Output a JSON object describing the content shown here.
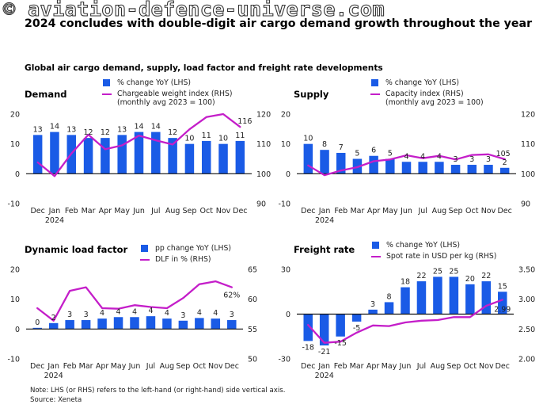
{
  "watermark": "© aviation-defence-universe.com",
  "headline": "2024 concludes with double-digit air cargo demand growth throughout the year",
  "subheadline": "Global air cargo demand, supply, load factor and freight rate developments",
  "footnote": "Note: LHS (or RHS) refers to the left-hand (or right-hand) side vertical axis.",
  "source": "Source: Xeneta",
  "colors": {
    "bar": "#1a5be6",
    "line": "#c41ec9",
    "zero_line": "#111111"
  },
  "chart_data": [
    {
      "id": "demand",
      "type": "bar+line",
      "title": "Demand",
      "categories": [
        "Dec",
        "Jan",
        "Feb",
        "Mar",
        "Apr",
        "May",
        "Jun",
        "Jul",
        "Aug",
        "Sep",
        "Oct",
        "Nov",
        "Dec"
      ],
      "year_label": "2024",
      "year_label_index": 1,
      "lhs": {
        "ylim": [
          -10,
          20
        ],
        "ticks": [
          -10,
          0,
          10,
          20
        ]
      },
      "rhs": {
        "ylim": [
          90,
          120
        ],
        "ticks": [
          90,
          100,
          110,
          120
        ]
      },
      "series": [
        {
          "name": "% change YoY (LHS)",
          "kind": "bar",
          "axis": "lhs",
          "values": [
            13,
            14,
            13,
            12,
            12,
            13,
            14,
            14,
            12,
            10,
            11,
            10,
            11
          ],
          "labels": [
            "13",
            "14",
            "13",
            "12",
            "12",
            "13",
            "14",
            "14",
            "12",
            "10",
            "11",
            "10",
            "11"
          ]
        },
        {
          "name": "Chargeable weight index (RHS)\n(monthly avg 2023 = 100)",
          "kind": "line",
          "axis": "rhs",
          "values": [
            103.8,
            99.2,
            106.8,
            113.1,
            108.2,
            109.5,
            112.8,
            111.2,
            109.8,
            114.9,
            119.0,
            120.0,
            115.7
          ],
          "end_label": "116"
        }
      ]
    },
    {
      "id": "supply",
      "type": "bar+line",
      "title": "Supply",
      "categories": [
        "Dec",
        "Jan",
        "Feb",
        "Mar",
        "Apr",
        "May",
        "Jun",
        "Jul",
        "Aug",
        "Sep",
        "Oct",
        "Nov",
        "Dec"
      ],
      "year_label": "2024",
      "year_label_index": 1,
      "lhs": {
        "ylim": [
          -10,
          20
        ],
        "ticks": [
          -10,
          0,
          10,
          20
        ]
      },
      "rhs": {
        "ylim": [
          90,
          120
        ],
        "ticks": [
          90,
          100,
          110,
          120
        ]
      },
      "series": [
        {
          "name": "% change YoY (LHS)",
          "kind": "bar",
          "axis": "lhs",
          "values": [
            10,
            8,
            7,
            5,
            6,
            5,
            4,
            4,
            4,
            3,
            3,
            3,
            2
          ],
          "labels": [
            "10",
            "8",
            "7",
            "5",
            "6",
            "5",
            "4",
            "4",
            "4",
            "3",
            "3",
            "3",
            "2"
          ]
        },
        {
          "name": "Capacity index (RHS)\n(monthly avg 2023 = 100)",
          "kind": "line",
          "axis": "rhs",
          "values": [
            102.8,
            99.5,
            101.1,
            102.2,
            104.2,
            104.8,
            106.2,
            105.2,
            106.0,
            104.8,
            106.3,
            106.5,
            104.9
          ],
          "end_label": "105"
        }
      ]
    },
    {
      "id": "load-factor",
      "type": "bar+line",
      "title": "Dynamic load factor",
      "categories": [
        "Dec",
        "Jan",
        "Feb",
        "Mar",
        "Apr",
        "May",
        "Jun",
        "Jul",
        "Aug",
        "Sep",
        "Oct",
        "Nov",
        "Dec"
      ],
      "year_label": "2024",
      "year_label_index": 1,
      "lhs": {
        "ylim": [
          -10,
          20
        ],
        "ticks": [
          -10,
          0,
          10,
          20
        ]
      },
      "rhs": {
        "ylim": [
          50,
          65
        ],
        "ticks": [
          50,
          55,
          60,
          65
        ]
      },
      "series": [
        {
          "name": "pp change YoY (LHS)",
          "kind": "bar",
          "axis": "lhs",
          "values": [
            0.4,
            2,
            3,
            3,
            3.5,
            4,
            4,
            4.3,
            3.5,
            2.8,
            3.7,
            3.5,
            3
          ],
          "labels": [
            "0",
            "2",
            "3",
            "3",
            "4",
            "4",
            "4",
            "4",
            "4",
            "3",
            "4",
            "4",
            "3"
          ]
        },
        {
          "name": "DLF in % (RHS)",
          "kind": "line",
          "axis": "rhs",
          "values": [
            58.5,
            56.4,
            61.4,
            62.0,
            58.5,
            58.4,
            59.0,
            58.7,
            58.5,
            60.2,
            62.5,
            63.0,
            62.0
          ],
          "end_label": "62%"
        }
      ]
    },
    {
      "id": "freight-rate",
      "type": "bar+line",
      "title": "Freight rate",
      "categories": [
        "Dec",
        "Jan",
        "Feb",
        "Mar",
        "Apr",
        "May",
        "Jun",
        "Jul",
        "Aug",
        "Sep",
        "Oct",
        "Nov",
        "Dec"
      ],
      "year_label": "2024",
      "year_label_index": 1,
      "lhs": {
        "ylim": [
          -30,
          30
        ],
        "ticks": [
          -30,
          0,
          30
        ]
      },
      "rhs": {
        "ylim": [
          2.0,
          3.5
        ],
        "ticks": [
          "2.00",
          "2.50",
          "3.00",
          "3.50"
        ]
      },
      "series": [
        {
          "name": "% change YoY (LHS)",
          "kind": "bar",
          "axis": "lhs",
          "values": [
            -18,
            -21,
            -15,
            -5,
            3,
            8,
            18,
            22,
            25,
            25,
            20,
            22,
            15
          ],
          "labels": [
            "-18",
            "-21",
            "-15",
            "-5",
            "3",
            "8",
            "18",
            "22",
            "25",
            "25",
            "20",
            "22",
            "15"
          ]
        },
        {
          "name": "Spot rate in USD per kg (RHS)",
          "kind": "line",
          "axis": "rhs",
          "values": [
            2.57,
            2.27,
            2.29,
            2.44,
            2.56,
            2.55,
            2.61,
            2.64,
            2.65,
            2.7,
            2.7,
            2.89,
            2.99
          ],
          "end_label": "2.99"
        }
      ]
    }
  ]
}
